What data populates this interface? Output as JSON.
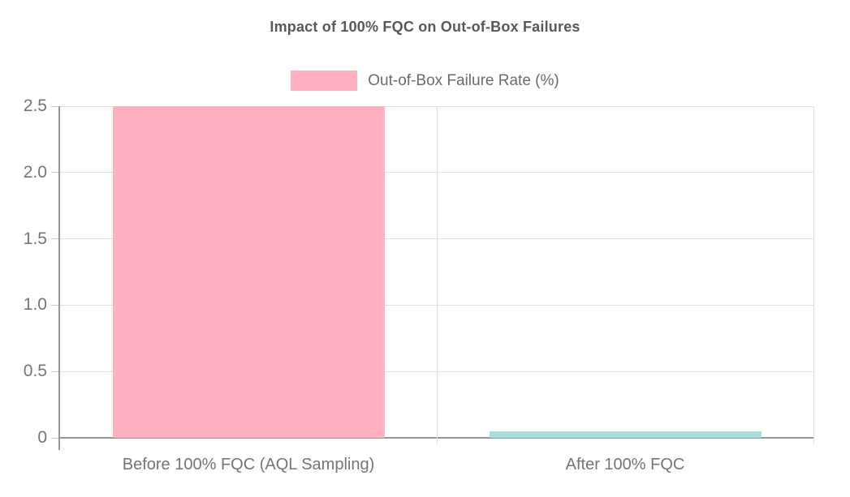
{
  "chart_data": {
    "type": "bar",
    "title": "Impact of 100% FQC on Out-of-Box Failures",
    "legend": {
      "position": "top",
      "entries": [
        {
          "label": "Out-of-Box Failure Rate (%)",
          "color": "#ffb1c1"
        }
      ]
    },
    "categories": [
      "Before 100% FQC (AQL Sampling)",
      "After 100% FQC"
    ],
    "series": [
      {
        "name": "Out-of-Box Failure Rate (%)",
        "values": [
          2.5,
          0.05
        ],
        "bar_colors": [
          "#ffb1c1",
          "#a8ddd9"
        ]
      }
    ],
    "xlabel": "",
    "ylabel": "",
    "ylim": [
      0,
      2.5
    ],
    "yticks": [
      0,
      0.5,
      1.0,
      1.5,
      2.0,
      2.5
    ],
    "ytick_labels": [
      "0",
      "0.5",
      "1.0",
      "1.5",
      "2.0",
      "2.5"
    ],
    "grid": true,
    "colors": {
      "title_text": "#595959",
      "axis_text": "#757575",
      "legend_text": "#6b6b6b",
      "axis_line": "#969696",
      "gridline": "#e2e2e2"
    }
  }
}
